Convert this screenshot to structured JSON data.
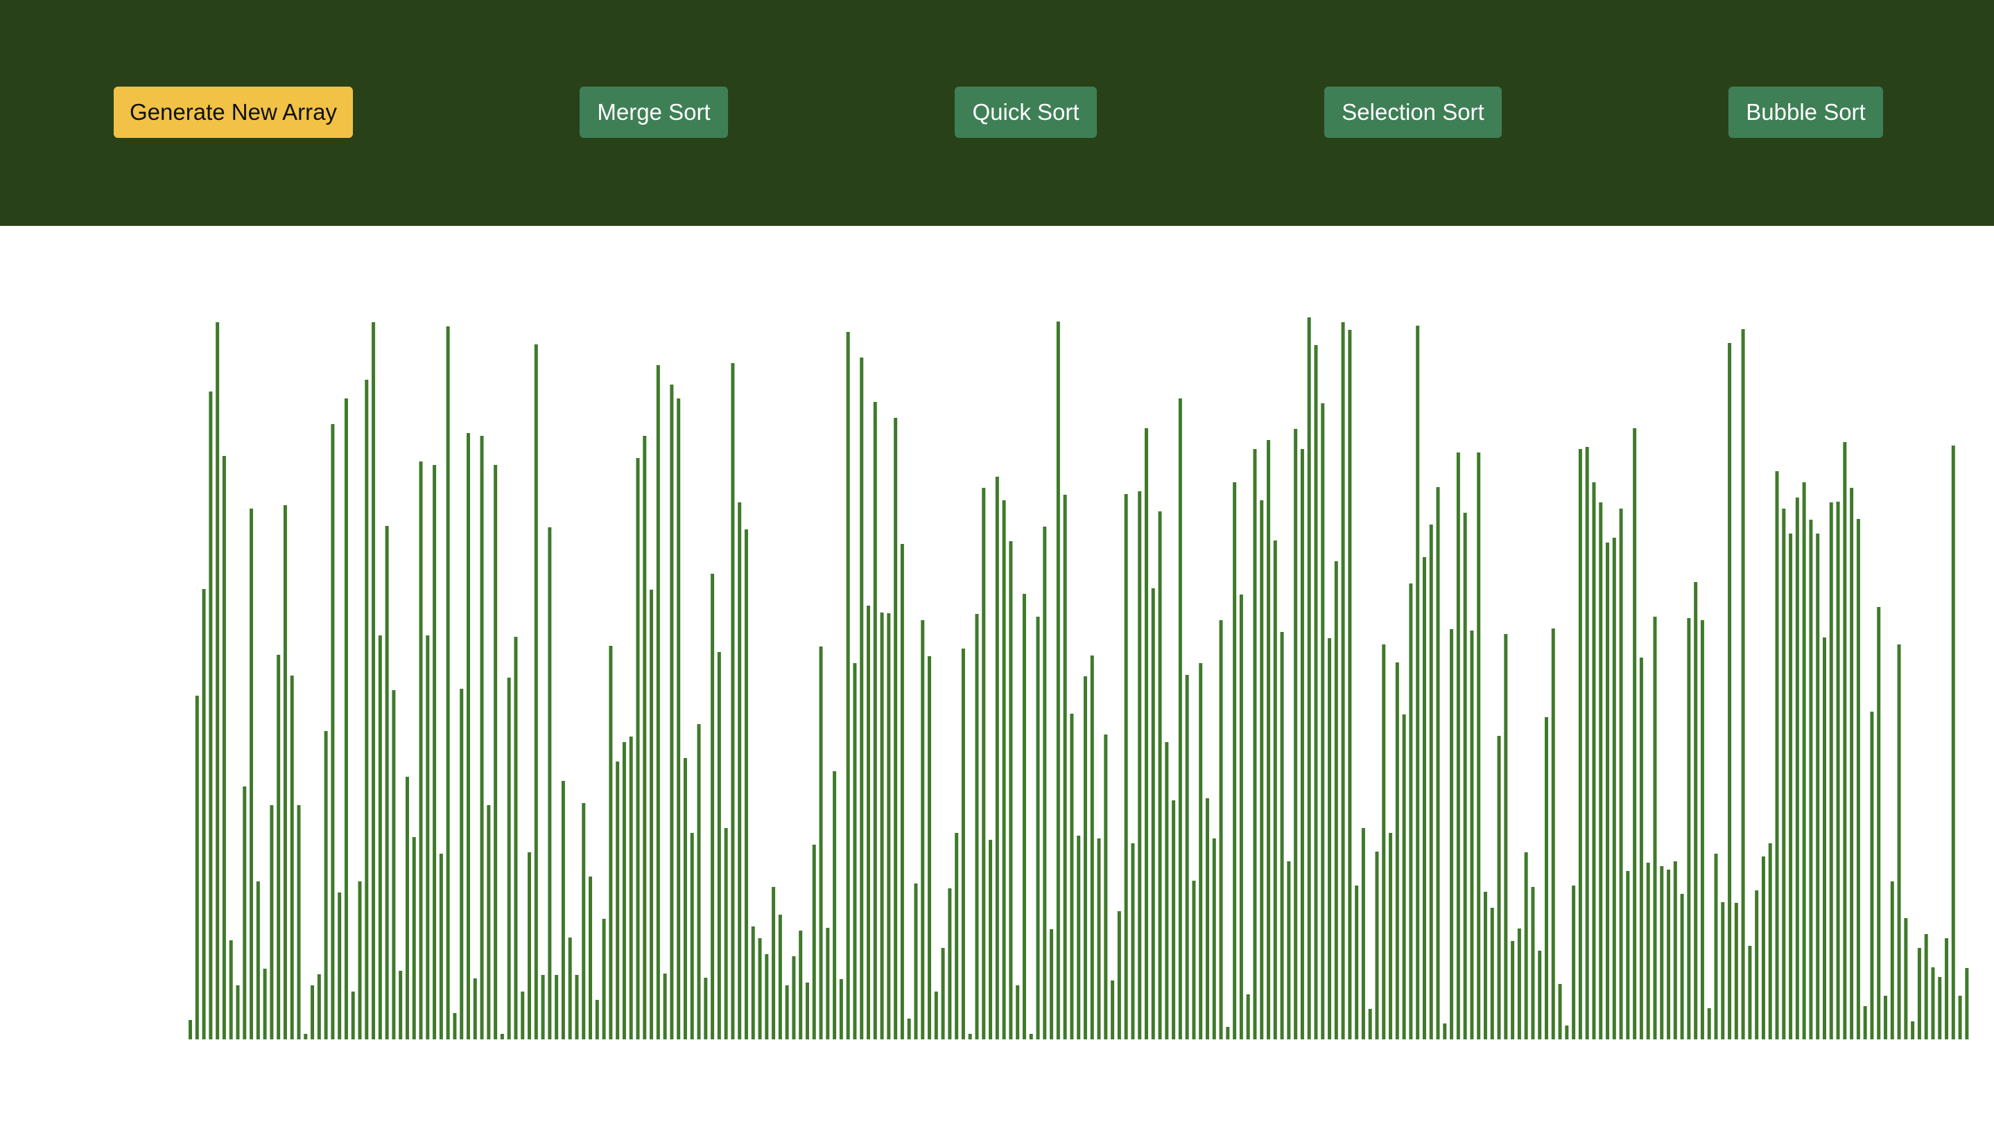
{
  "toolbar": {
    "generate_label": "Generate New Array",
    "merge_label": "Merge Sort",
    "quick_label": "Quick Sort",
    "selection_label": "Selection Sort",
    "bubble_label": "Bubble Sort"
  },
  "colors": {
    "header_background": "#294119",
    "generate_button": "#f2c246",
    "sort_button": "#3f7f56",
    "bar": "#3f7a2b"
  },
  "array": {
    "max_value": 1045,
    "values": [
      28,
      496,
      650,
      935,
      1035,
      842,
      143,
      78,
      365,
      766,
      228,
      102,
      338,
      555,
      771,
      525,
      338,
      8,
      78,
      94,
      445,
      888,
      212,
      925,
      69,
      228,
      952,
      1035,
      583,
      741,
      504,
      99,
      379,
      292,
      834,
      583,
      829,
      268,
      1029,
      38,
      506,
      875,
      88,
      871,
      338,
      829,
      8,
      522,
      581,
      69,
      270,
      1003,
      93,
      739,
      93,
      373,
      147,
      93,
      341,
      235,
      57,
      174,
      568,
      401,
      429,
      437,
      839,
      871,
      649,
      973,
      95,
      945,
      925,
      406,
      298,
      455,
      89,
      672,
      559,
      305,
      976,
      775,
      736,
      163,
      146,
      123,
      220,
      180,
      78,
      120,
      157,
      82,
      281,
      567,
      161,
      387,
      87,
      1021,
      543,
      984,
      626,
      920,
      616,
      615,
      897,
      715,
      30,
      225,
      605,
      553,
      69,
      132,
      218,
      298,
      564,
      8,
      614,
      796,
      288,
      812,
      778,
      719,
      78,
      643,
      8,
      610,
      740,
      159,
      1036,
      786,
      470,
      294,
      524,
      554,
      290,
      440,
      85,
      185,
      787,
      283,
      791,
      882,
      651,
      762,
      429,
      345,
      925,
      526,
      229,
      543,
      348,
      290,
      605,
      18,
      804,
      642,
      65,
      852,
      778,
      865,
      720,
      588,
      257,
      881,
      852,
      1042,
      1002,
      918,
      579,
      690,
      1035,
      1024,
      222,
      305,
      44,
      271,
      570,
      298,
      544,
      469,
      658,
      1030,
      696,
      743,
      797,
      23,
      592,
      847,
      760,
      590,
      847,
      213,
      190,
      438,
      585,
      142,
      160,
      270,
      220,
      128,
      465,
      593,
      80,
      20,
      222,
      852,
      855,
      804,
      775,
      717,
      724,
      766,
      243,
      882,
      551,
      255,
      610,
      250,
      245,
      257,
      210,
      608,
      660,
      605,
      45,
      268,
      198,
      1005,
      197,
      1025,
      135,
      215,
      264,
      283,
      820,
      766,
      730,
      782,
      804,
      750,
      730,
      580,
      775,
      776,
      862,
      796,
      751,
      48,
      473,
      624,
      63,
      228,
      570,
      175,
      26,
      132,
      152,
      104,
      90,
      146,
      857,
      63,
      103
    ]
  }
}
